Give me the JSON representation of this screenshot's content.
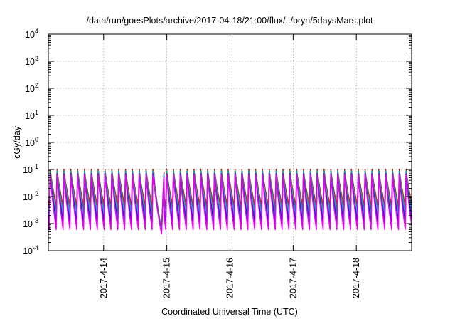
{
  "chart_data": {
    "type": "line",
    "title": "/data/run/goesPlots/archive/2017-04-18/21:00/flux/../bryn/5daysMars.plot",
    "xlabel": "Coordinated Universal Time (UTC)",
    "ylabel": "cGy/day",
    "yscale": "log",
    "ylim": [
      0.0001,
      10000
    ],
    "xlim": [
      "2017-04-13 03:00",
      "2017-04-18 21:00"
    ],
    "grid": true,
    "x_ticks": [
      "2017-4-14",
      "2017-4-15",
      "2017-4-16",
      "2017-4-17",
      "2017-4-18"
    ],
    "y_ticks": [
      {
        "base": "10",
        "exp": "-4"
      },
      {
        "base": "10",
        "exp": "-3"
      },
      {
        "base": "10",
        "exp": "-2"
      },
      {
        "base": "10",
        "exp": "-1"
      },
      {
        "base": "10",
        "exp": "0"
      },
      {
        "base": "10",
        "exp": "1"
      },
      {
        "base": "10",
        "exp": "2"
      },
      {
        "base": "10",
        "exp": "3"
      },
      {
        "base": "10",
        "exp": "4"
      }
    ],
    "oscillation": {
      "period_hours": 2.6,
      "peak_day": "2017-04-14 21:00",
      "peak_values": [
        0.11,
        0.1,
        0.09,
        0.08,
        0.075,
        0.07
      ],
      "trough_values": [
        0.0045,
        0.003,
        0.002,
        0.0014,
        0.001,
        0.0006
      ],
      "dip_date": "2017-04-14 22:00",
      "dip_values": [
        0.0006,
        0.00055,
        0.0005,
        0.00048,
        0.00045,
        0.00042
      ]
    },
    "series": [
      {
        "color": "#ff0000"
      },
      {
        "color": "#2e8b57"
      },
      {
        "color": "#00bfc8"
      },
      {
        "color": "#4169e1"
      },
      {
        "color": "#1010d0"
      },
      {
        "color": "#ee00ee"
      }
    ]
  }
}
